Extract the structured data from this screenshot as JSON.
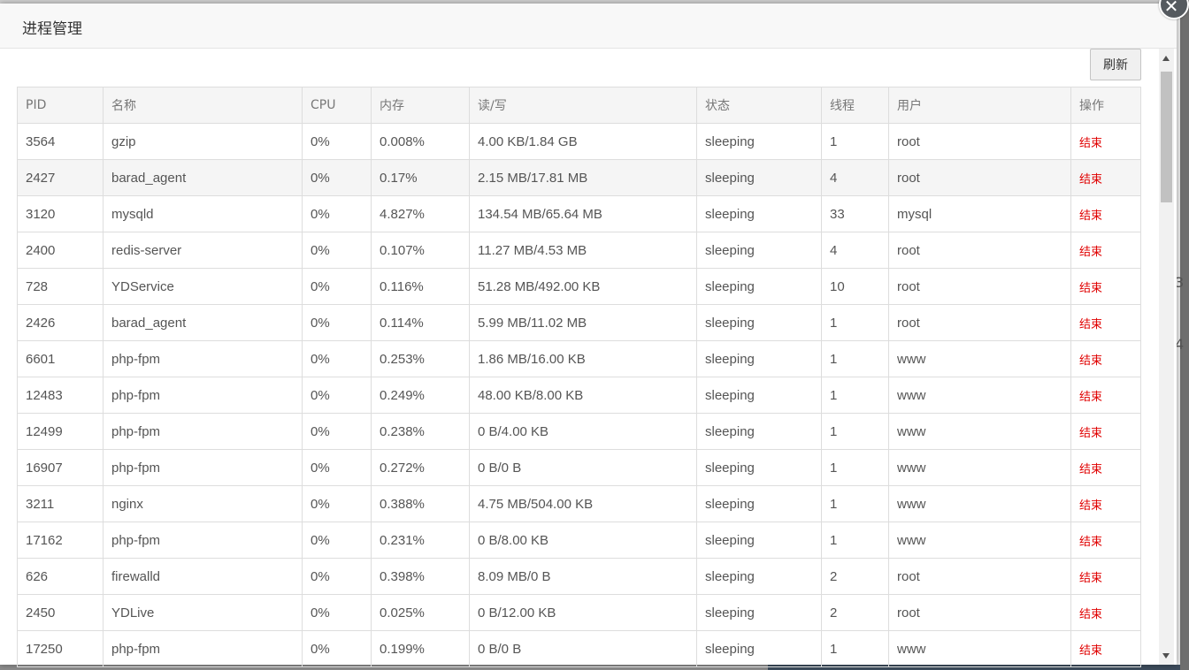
{
  "dialog": {
    "title": "进程管理",
    "close_icon": "close-icon",
    "refresh_label": "刷新"
  },
  "table": {
    "headers": [
      "PID",
      "名称",
      "CPU",
      "内存",
      "读/写",
      "状态",
      "线程",
      "用户",
      "操作"
    ],
    "action_label": "结束",
    "action_color": "#e00000",
    "rows": [
      {
        "pid": "3564",
        "name": "gzip",
        "cpu": "0%",
        "mem": "0.008%",
        "io": "4.00 KB/1.84 GB",
        "state": "sleeping",
        "threads": "1",
        "user": "root",
        "action": "结束"
      },
      {
        "pid": "2427",
        "name": "barad_agent",
        "cpu": "0%",
        "mem": "0.17%",
        "io": "2.15 MB/17.81 MB",
        "state": "sleeping",
        "threads": "4",
        "user": "root",
        "action": "结束"
      },
      {
        "pid": "3120",
        "name": "mysqld",
        "cpu": "0%",
        "mem": "4.827%",
        "io": "134.54 MB/65.64 MB",
        "state": "sleeping",
        "threads": "33",
        "user": "mysql",
        "action": "结束"
      },
      {
        "pid": "2400",
        "name": "redis-server",
        "cpu": "0%",
        "mem": "0.107%",
        "io": "11.27 MB/4.53 MB",
        "state": "sleeping",
        "threads": "4",
        "user": "root",
        "action": "结束"
      },
      {
        "pid": "728",
        "name": "YDService",
        "cpu": "0%",
        "mem": "0.116%",
        "io": "51.28 MB/492.00 KB",
        "state": "sleeping",
        "threads": "10",
        "user": "root",
        "action": "结束"
      },
      {
        "pid": "2426",
        "name": "barad_agent",
        "cpu": "0%",
        "mem": "0.114%",
        "io": "5.99 MB/11.02 MB",
        "state": "sleeping",
        "threads": "1",
        "user": "root",
        "action": "结束"
      },
      {
        "pid": "6601",
        "name": "php-fpm",
        "cpu": "0%",
        "mem": "0.253%",
        "io": "1.86 MB/16.00 KB",
        "state": "sleeping",
        "threads": "1",
        "user": "www",
        "action": "结束"
      },
      {
        "pid": "12483",
        "name": "php-fpm",
        "cpu": "0%",
        "mem": "0.249%",
        "io": "48.00 KB/8.00 KB",
        "state": "sleeping",
        "threads": "1",
        "user": "www",
        "action": "结束"
      },
      {
        "pid": "12499",
        "name": "php-fpm",
        "cpu": "0%",
        "mem": "0.238%",
        "io": "0 B/4.00 KB",
        "state": "sleeping",
        "threads": "1",
        "user": "www",
        "action": "结束"
      },
      {
        "pid": "16907",
        "name": "php-fpm",
        "cpu": "0%",
        "mem": "0.272%",
        "io": "0 B/0 B",
        "state": "sleeping",
        "threads": "1",
        "user": "www",
        "action": "结束"
      },
      {
        "pid": "3211",
        "name": "nginx",
        "cpu": "0%",
        "mem": "0.388%",
        "io": "4.75 MB/504.00 KB",
        "state": "sleeping",
        "threads": "1",
        "user": "www",
        "action": "结束"
      },
      {
        "pid": "17162",
        "name": "php-fpm",
        "cpu": "0%",
        "mem": "0.231%",
        "io": "0 B/8.00 KB",
        "state": "sleeping",
        "threads": "1",
        "user": "www",
        "action": "结束"
      },
      {
        "pid": "626",
        "name": "firewalld",
        "cpu": "0%",
        "mem": "0.398%",
        "io": "8.09 MB/0 B",
        "state": "sleeping",
        "threads": "2",
        "user": "root",
        "action": "结束"
      },
      {
        "pid": "2450",
        "name": "YDLive",
        "cpu": "0%",
        "mem": "0.025%",
        "io": "0 B/12.00 KB",
        "state": "sleeping",
        "threads": "2",
        "user": "root",
        "action": "结束"
      },
      {
        "pid": "17250",
        "name": "php-fpm",
        "cpu": "0%",
        "mem": "0.199%",
        "io": "0 B/0 B",
        "state": "sleeping",
        "threads": "1",
        "user": "www",
        "action": "结束"
      }
    ]
  },
  "background": {
    "right_glyph_1": "3",
    "right_glyph_2": "4"
  }
}
